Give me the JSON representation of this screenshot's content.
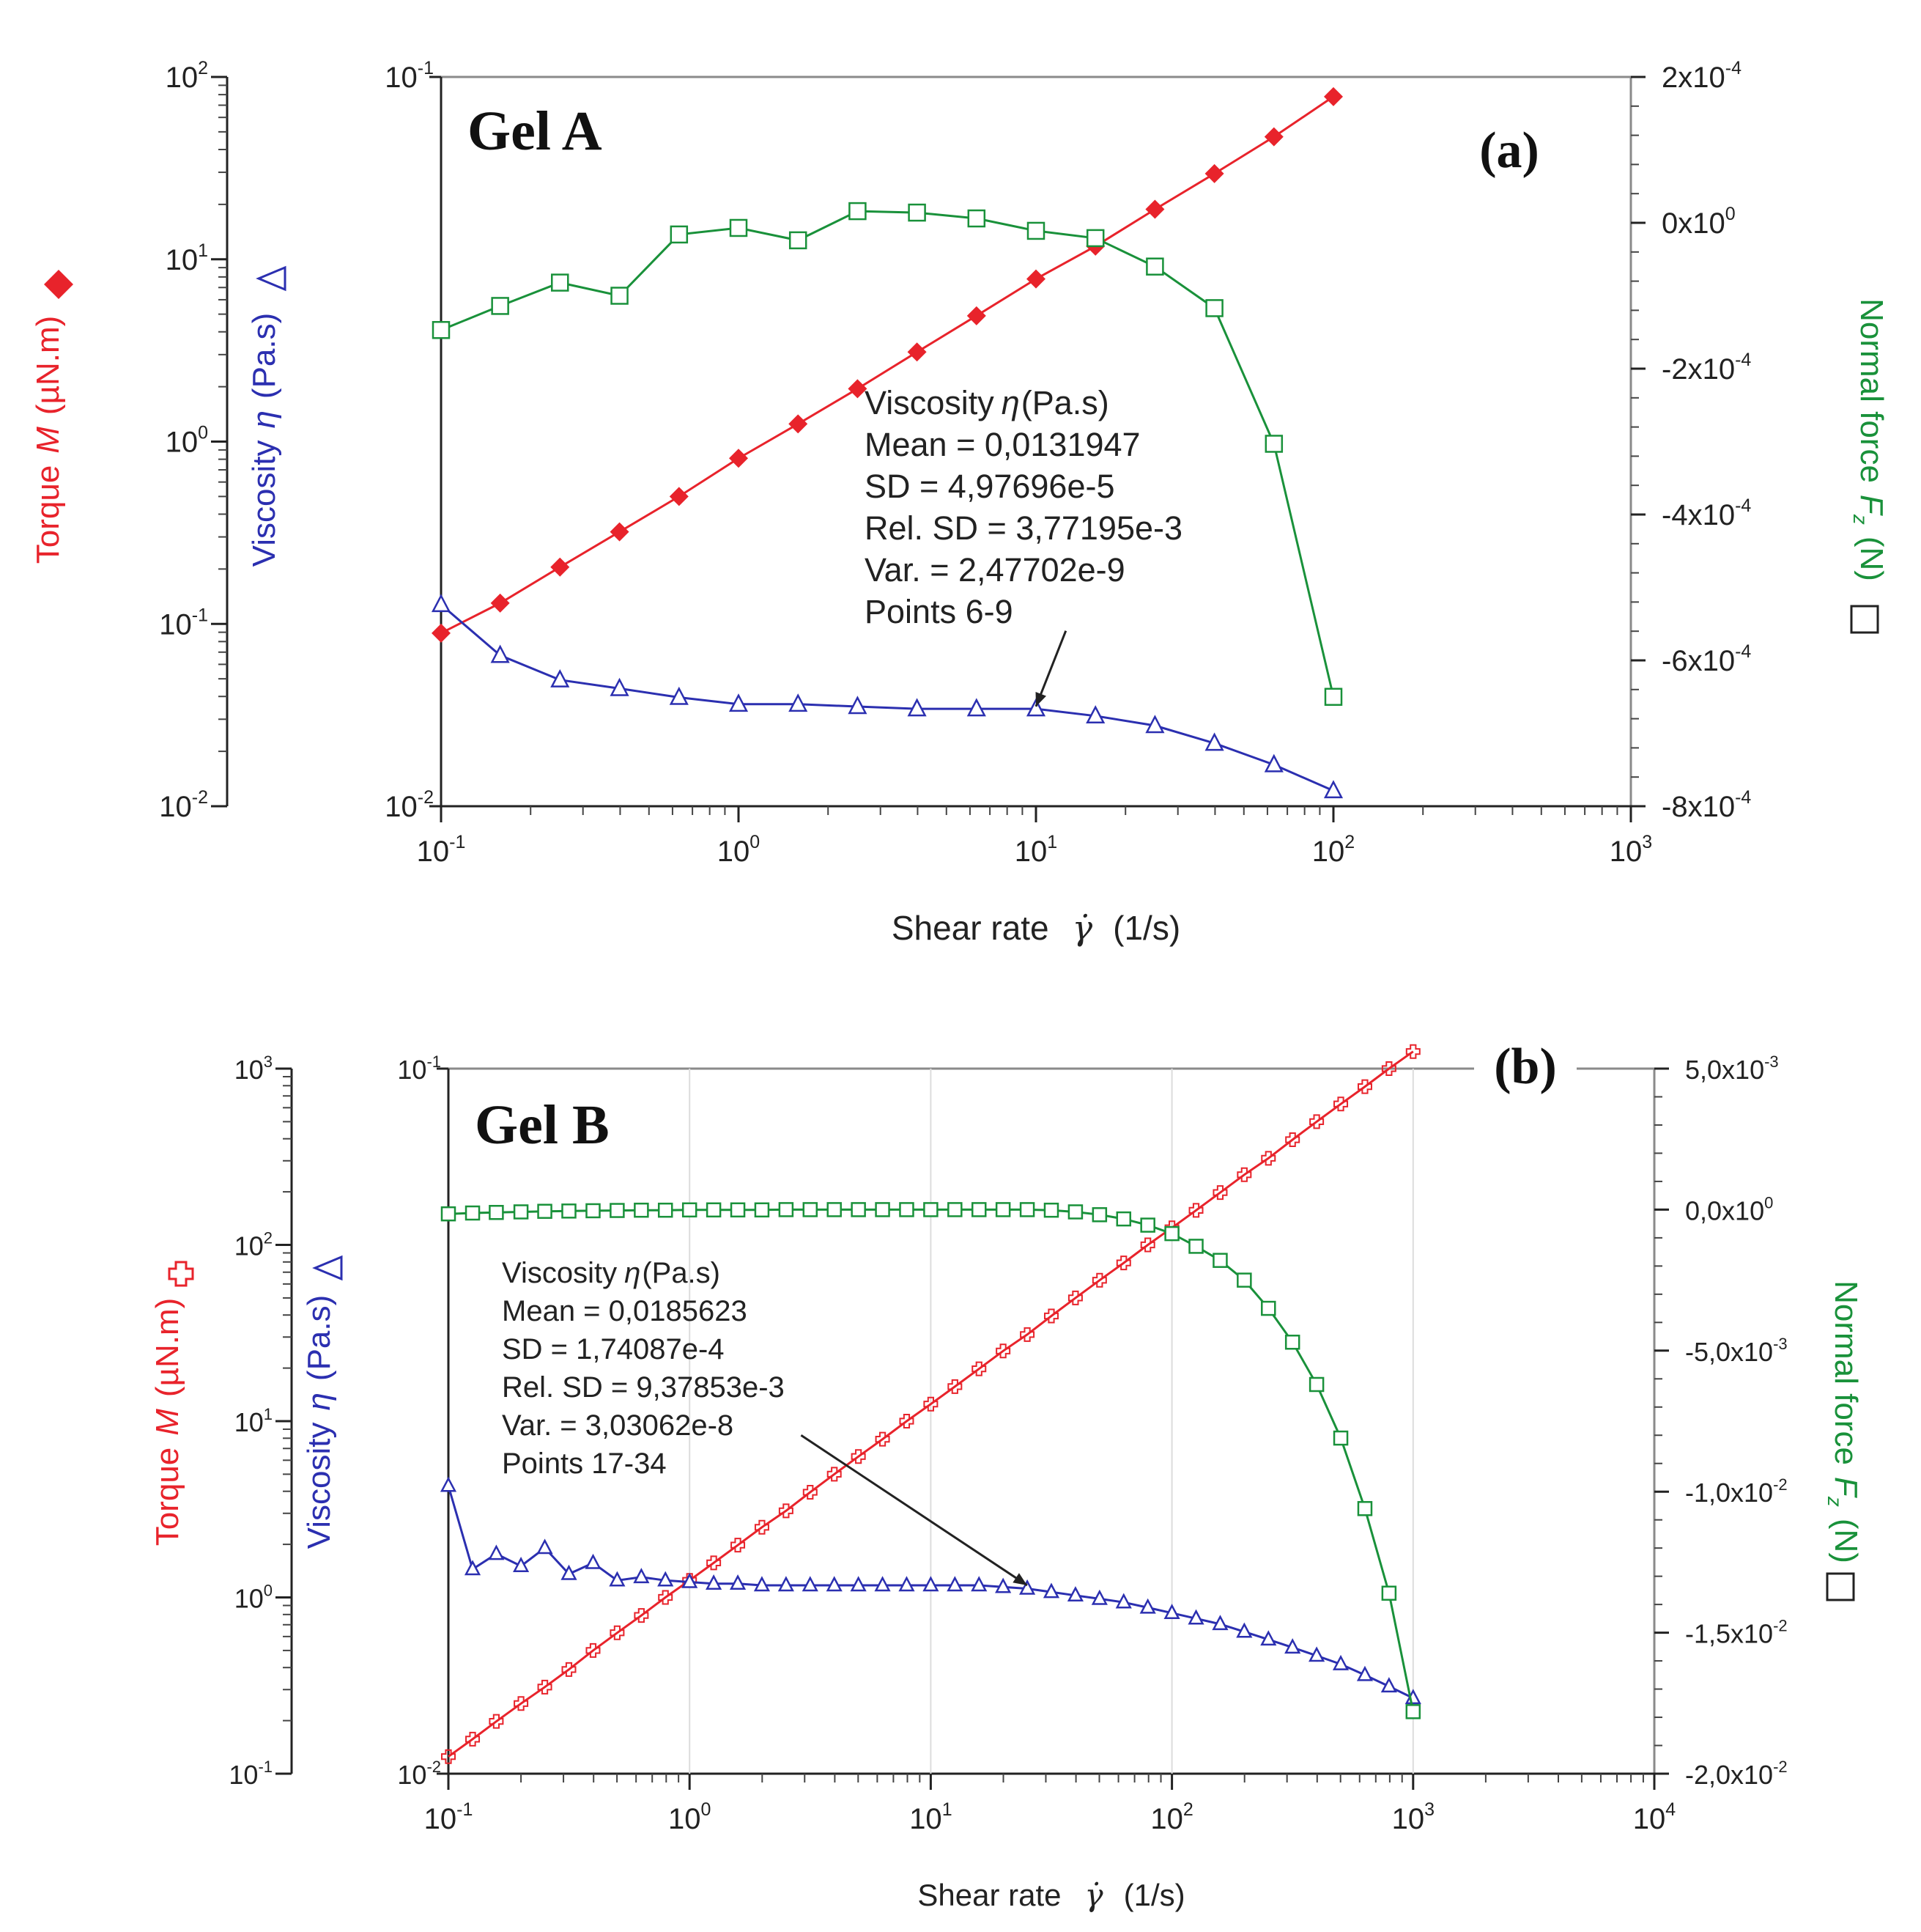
{
  "chart_data": [
    {
      "id": "a",
      "type": "line",
      "panel_label": "(a)",
      "title": "Gel A",
      "xlabel": "Shear rate",
      "xlabel_symbol": "γ̇",
      "xlabel_unit": "(1/s)",
      "xscale": "log",
      "xlim": [
        0.1,
        1000
      ],
      "x_ticks": [
        {
          "m": "10",
          "e": "-1"
        },
        {
          "m": "10",
          "e": "0"
        },
        {
          "m": "10",
          "e": "1"
        },
        {
          "m": "10",
          "e": "2"
        },
        {
          "m": "10",
          "e": "3"
        }
      ],
      "axes": {
        "torque": {
          "label_text": "Torque",
          "label_symbol": "M",
          "label_unit": "(µN.m)",
          "scale": "log",
          "range": [
            0.01,
            100
          ],
          "color": "#e8232b",
          "ticks": [
            {
              "m": "10",
              "e": "2"
            },
            {
              "m": "10",
              "e": "1"
            },
            {
              "m": "10",
              "e": "0"
            },
            {
              "m": "10",
              "e": "-1"
            },
            {
              "m": "10",
              "e": "-2"
            }
          ]
        },
        "viscosity": {
          "label_text": "Viscosity",
          "label_symbol": "η",
          "label_unit": "(Pa.s)",
          "scale": "log",
          "range": [
            0.01,
            0.1
          ],
          "color": "#2b2fb0",
          "ticks": [
            {
              "m": "10",
              "e": "-1"
            },
            {
              "m": "10",
              "e": "-2"
            }
          ]
        },
        "normal_force": {
          "label_text": "Normal force",
          "label_symbol": "F",
          "label_sub": "z",
          "label_unit": "(N)",
          "scale": "linear",
          "range": [
            -0.0008,
            0.0002
          ],
          "color": "#19913a",
          "ticks": [
            {
              "m": "2x10",
              "e": "-4"
            },
            {
              "m": "0x10",
              "e": "0"
            },
            {
              "m": "-2x10",
              "e": "-4"
            },
            {
              "m": "-4x10",
              "e": "-4"
            },
            {
              "m": "-6x10",
              "e": "-4"
            },
            {
              "m": "-8x10",
              "e": "-4"
            }
          ]
        }
      },
      "series": [
        {
          "name": "Torque M",
          "axis": "torque",
          "marker": "diamond-filled",
          "color": "#e8232b",
          "x": [
            0.1,
            0.158,
            0.251,
            0.398,
            0.631,
            1.0,
            1.585,
            2.512,
            3.981,
            6.31,
            10.0,
            15.85,
            25.12,
            39.81,
            63.1,
            100.0
          ],
          "y": [
            0.089,
            0.13,
            0.205,
            0.32,
            0.5,
            0.81,
            1.25,
            1.95,
            3.1,
            4.9,
            7.8,
            11.8,
            18.8,
            29.5,
            47.0,
            78.0
          ]
        },
        {
          "name": "Viscosity η",
          "axis": "viscosity",
          "marker": "triangle-open",
          "color": "#2b2fb0",
          "x": [
            0.1,
            0.158,
            0.251,
            0.398,
            0.631,
            1.0,
            1.585,
            2.512,
            3.981,
            6.31,
            10.0,
            15.85,
            25.12,
            39.81,
            63.1,
            100.0
          ],
          "y": [
            0.0189,
            0.0161,
            0.0149,
            0.0145,
            0.0141,
            0.0138,
            0.0138,
            0.0137,
            0.0136,
            0.0136,
            0.0136,
            0.0133,
            0.0129,
            0.0122,
            0.0114,
            0.0105
          ]
        },
        {
          "name": "Normal force Fz",
          "axis": "normal_force",
          "marker": "square-open",
          "color": "#19913a",
          "x": [
            0.1,
            0.158,
            0.251,
            0.398,
            0.631,
            1.0,
            1.585,
            2.512,
            3.981,
            6.31,
            10.0,
            15.85,
            25.12,
            39.81,
            63.1,
            100.0
          ],
          "y": [
            -0.000147,
            -0.000114,
            -8.2e-05,
            -0.0001,
            -1.6e-05,
            -7e-06,
            -2.4e-05,
            1.6e-05,
            1.4e-05,
            6e-06,
            -1.1e-05,
            -2.1e-05,
            -6e-05,
            -0.000117,
            -0.000303,
            -0.00065
          ]
        }
      ],
      "annotation": {
        "lines": [
          {
            "label": "Viscosity",
            "symbol": "η",
            "value": "(Pa.s)"
          },
          {
            "label": "Mean = 0,0131947"
          },
          {
            "label": "SD = 4,97696e-5"
          },
          {
            "label": "Rel. SD = 3,77195e-3"
          },
          {
            "label": "Var. = 2,47702e-9"
          },
          {
            "label": "Points 6-9"
          }
        ],
        "arrow_from": {
          "x": 12.6,
          "y": 0.0174
        },
        "arrow_to": {
          "x": 10.0,
          "y": 0.0137
        }
      }
    },
    {
      "id": "b",
      "type": "line",
      "panel_label": "(b)",
      "title": "Gel B",
      "xlabel": "Shear rate",
      "xlabel_symbol": "γ̇",
      "xlabel_unit": "(1/s)",
      "xscale": "log",
      "xlim": [
        0.1,
        10000
      ],
      "x_ticks": [
        {
          "m": "10",
          "e": "-1"
        },
        {
          "m": "10",
          "e": "0"
        },
        {
          "m": "10",
          "e": "1"
        },
        {
          "m": "10",
          "e": "2"
        },
        {
          "m": "10",
          "e": "3"
        },
        {
          "m": "10",
          "e": "4"
        }
      ],
      "axes": {
        "torque": {
          "label_text": "Torque",
          "label_symbol": "M",
          "label_unit": "(µN.m)",
          "scale": "log",
          "range": [
            0.1,
            1000
          ],
          "color": "#e8232b",
          "ticks": [
            {
              "m": "10",
              "e": "3"
            },
            {
              "m": "10",
              "e": "2"
            },
            {
              "m": "10",
              "e": "1"
            },
            {
              "m": "10",
              "e": "0"
            },
            {
              "m": "10",
              "e": "-1"
            }
          ]
        },
        "viscosity": {
          "label_text": "Viscosity",
          "label_symbol": "η",
          "label_unit": "(Pa.s)",
          "scale": "log",
          "range": [
            0.01,
            0.1
          ],
          "color": "#2b2fb0",
          "ticks": [
            {
              "m": "10",
              "e": "-1"
            },
            {
              "m": "10",
              "e": "-2"
            }
          ]
        },
        "normal_force": {
          "label_text": "Normal force",
          "label_symbol": "F",
          "label_sub": "z",
          "label_unit": "(N)",
          "scale": "linear",
          "range": [
            -0.02,
            0.005
          ],
          "color": "#19913a",
          "ticks": [
            {
              "m": "5,0x10",
              "e": "-3"
            },
            {
              "m": "0,0x10",
              "e": "0"
            },
            {
              "m": "-5,0x10",
              "e": "-3"
            },
            {
              "m": "-1,0x10",
              "e": "-2"
            },
            {
              "m": "-1,5x10",
              "e": "-2"
            },
            {
              "m": "-2,0x10",
              "e": "-2"
            }
          ]
        }
      },
      "series": [
        {
          "name": "Torque M",
          "axis": "torque",
          "marker": "cross-open",
          "color": "#e8232b",
          "x": [
            0.1,
            0.126,
            0.158,
            0.2,
            0.251,
            0.316,
            0.398,
            0.501,
            0.631,
            0.794,
            1.0,
            1.259,
            1.585,
            1.995,
            2.512,
            3.162,
            3.981,
            5.012,
            6.31,
            7.943,
            10.0,
            12.59,
            15.85,
            19.95,
            25.12,
            31.62,
            39.81,
            50.12,
            63.1,
            79.43,
            100.0,
            125.9,
            158.5,
            199.5,
            251.2,
            316.2,
            398.1,
            501.2,
            631.0,
            794.3,
            1000.0
          ],
          "y": [
            0.125,
            0.157,
            0.198,
            0.25,
            0.31,
            0.39,
            0.5,
            0.63,
            0.79,
            1.0,
            1.25,
            1.57,
            1.98,
            2.5,
            3.1,
            3.95,
            5.0,
            6.3,
            7.9,
            10.0,
            12.5,
            15.7,
            19.8,
            25.0,
            31.0,
            39.5,
            50.0,
            63.0,
            79.0,
            100.0,
            125.0,
            157.0,
            198.0,
            250.0,
            310.0,
            395.0,
            500.0,
            630.0,
            790.0,
            1000.0,
            1250.0
          ]
        },
        {
          "name": "Viscosity η",
          "axis": "viscosity",
          "marker": "triangle-open",
          "color": "#2b2fb0",
          "x": [
            0.1,
            0.126,
            0.158,
            0.2,
            0.251,
            0.316,
            0.398,
            0.501,
            0.631,
            0.794,
            1.0,
            1.259,
            1.585,
            1.995,
            2.512,
            3.162,
            3.981,
            5.012,
            6.31,
            7.943,
            10.0,
            12.59,
            15.85,
            19.95,
            25.12,
            31.62,
            39.81,
            50.12,
            63.1,
            79.43,
            100.0,
            125.9,
            158.5,
            199.5,
            251.2,
            316.2,
            398.1,
            501.2,
            631.0,
            794.3,
            1000.0
          ],
          "y": [
            0.0256,
            0.0195,
            0.0205,
            0.0197,
            0.0209,
            0.0192,
            0.0199,
            0.0188,
            0.019,
            0.0188,
            0.0187,
            0.0186,
            0.0186,
            0.0185,
            0.0185,
            0.0185,
            0.0185,
            0.0185,
            0.0185,
            0.0185,
            0.0185,
            0.0185,
            0.0185,
            0.0184,
            0.0183,
            0.0181,
            0.0179,
            0.0177,
            0.0175,
            0.0172,
            0.0169,
            0.0166,
            0.0163,
            0.0159,
            0.0155,
            0.0151,
            0.0147,
            0.0143,
            0.0138,
            0.0133,
            0.0128
          ]
        },
        {
          "name": "Normal force Fz",
          "axis": "normal_force",
          "marker": "square-open",
          "color": "#19913a",
          "x": [
            0.1,
            0.126,
            0.158,
            0.2,
            0.251,
            0.316,
            0.398,
            0.501,
            0.631,
            0.794,
            1.0,
            1.259,
            1.585,
            1.995,
            2.512,
            3.162,
            3.981,
            5.012,
            6.31,
            7.943,
            10.0,
            12.59,
            15.85,
            19.95,
            25.12,
            31.62,
            39.81,
            50.12,
            63.1,
            79.43,
            100.0,
            125.9,
            158.5,
            199.5,
            251.2,
            316.2,
            398.1,
            501.2,
            631.0,
            794.3,
            1000.0
          ],
          "y": [
            -0.00015,
            -0.00012,
            -0.0001,
            -8e-05,
            -6e-05,
            -5e-05,
            -4e-05,
            -3e-05,
            -2e-05,
            -2e-05,
            -1e-05,
            -1e-05,
            -1e-05,
            -1e-05,
            0.0,
            0.0,
            0.0,
            0.0,
            0.0,
            0.0,
            0.0,
            0.0,
            0.0,
            0.0,
            0.0,
            -2e-05,
            -8e-05,
            -0.00018,
            -0.00033,
            -0.00055,
            -0.00085,
            -0.0013,
            -0.0018,
            -0.0025,
            -0.0035,
            -0.0047,
            -0.0062,
            -0.0081,
            -0.0106,
            -0.0136,
            -0.0178
          ]
        }
      ],
      "annotation": {
        "lines": [
          {
            "label": "Viscosity",
            "symbol": "η",
            "value": "(Pa.s)"
          },
          {
            "label": "Mean = 0,0185623"
          },
          {
            "label": "SD = 1,74087e-4"
          },
          {
            "label": "Rel. SD = 9,37853e-3"
          },
          {
            "label": "Var. = 3,03062e-8"
          },
          {
            "label": "Points 17-34"
          }
        ],
        "arrow_from": {
          "x": 2.9,
          "y": 0.0302
        },
        "arrow_to": {
          "x": 25.1,
          "y": 0.0185
        }
      }
    }
  ]
}
